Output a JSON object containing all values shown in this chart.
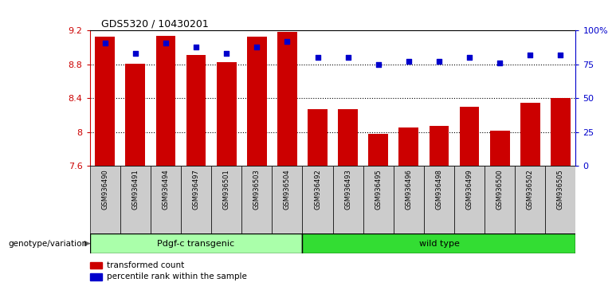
{
  "title": "GDS5320 / 10430201",
  "categories": [
    "GSM936490",
    "GSM936491",
    "GSM936494",
    "GSM936497",
    "GSM936501",
    "GSM936503",
    "GSM936504",
    "GSM936492",
    "GSM936493",
    "GSM936495",
    "GSM936496",
    "GSM936498",
    "GSM936499",
    "GSM936500",
    "GSM936502",
    "GSM936505"
  ],
  "bar_values": [
    9.13,
    8.81,
    9.14,
    8.91,
    8.83,
    9.13,
    9.18,
    8.27,
    8.27,
    7.98,
    8.05,
    8.07,
    8.3,
    8.02,
    8.35,
    8.4
  ],
  "dot_values": [
    91,
    83,
    91,
    88,
    83,
    88,
    92,
    80,
    80,
    75,
    77,
    77,
    80,
    76,
    82,
    82
  ],
  "bar_bottom": 7.6,
  "ylim_left": [
    7.6,
    9.2
  ],
  "ylim_right": [
    0,
    100
  ],
  "yticks_left": [
    7.6,
    8.0,
    8.4,
    8.8,
    9.2
  ],
  "ytick_labels_left": [
    "7.6",
    "8",
    "8.4",
    "8.8",
    "9.2"
  ],
  "yticks_right": [
    0,
    25,
    50,
    75,
    100
  ],
  "ytick_labels_right": [
    "0",
    "25",
    "50",
    "75",
    "100%"
  ],
  "bar_color": "#CC0000",
  "dot_color": "#0000CC",
  "group1_label": "Pdgf-c transgenic",
  "group2_label": "wild type",
  "group1_color": "#AAFFAA",
  "group2_color": "#33DD33",
  "group1_count": 7,
  "group2_count": 9,
  "genotype_label": "genotype/variation",
  "legend_bar": "transformed count",
  "legend_dot": "percentile rank within the sample",
  "bg_color": "#FFFFFF",
  "tick_area_color": "#CCCCCC",
  "left_ylabel_color": "#CC0000",
  "right_ylabel_color": "#0000CC"
}
